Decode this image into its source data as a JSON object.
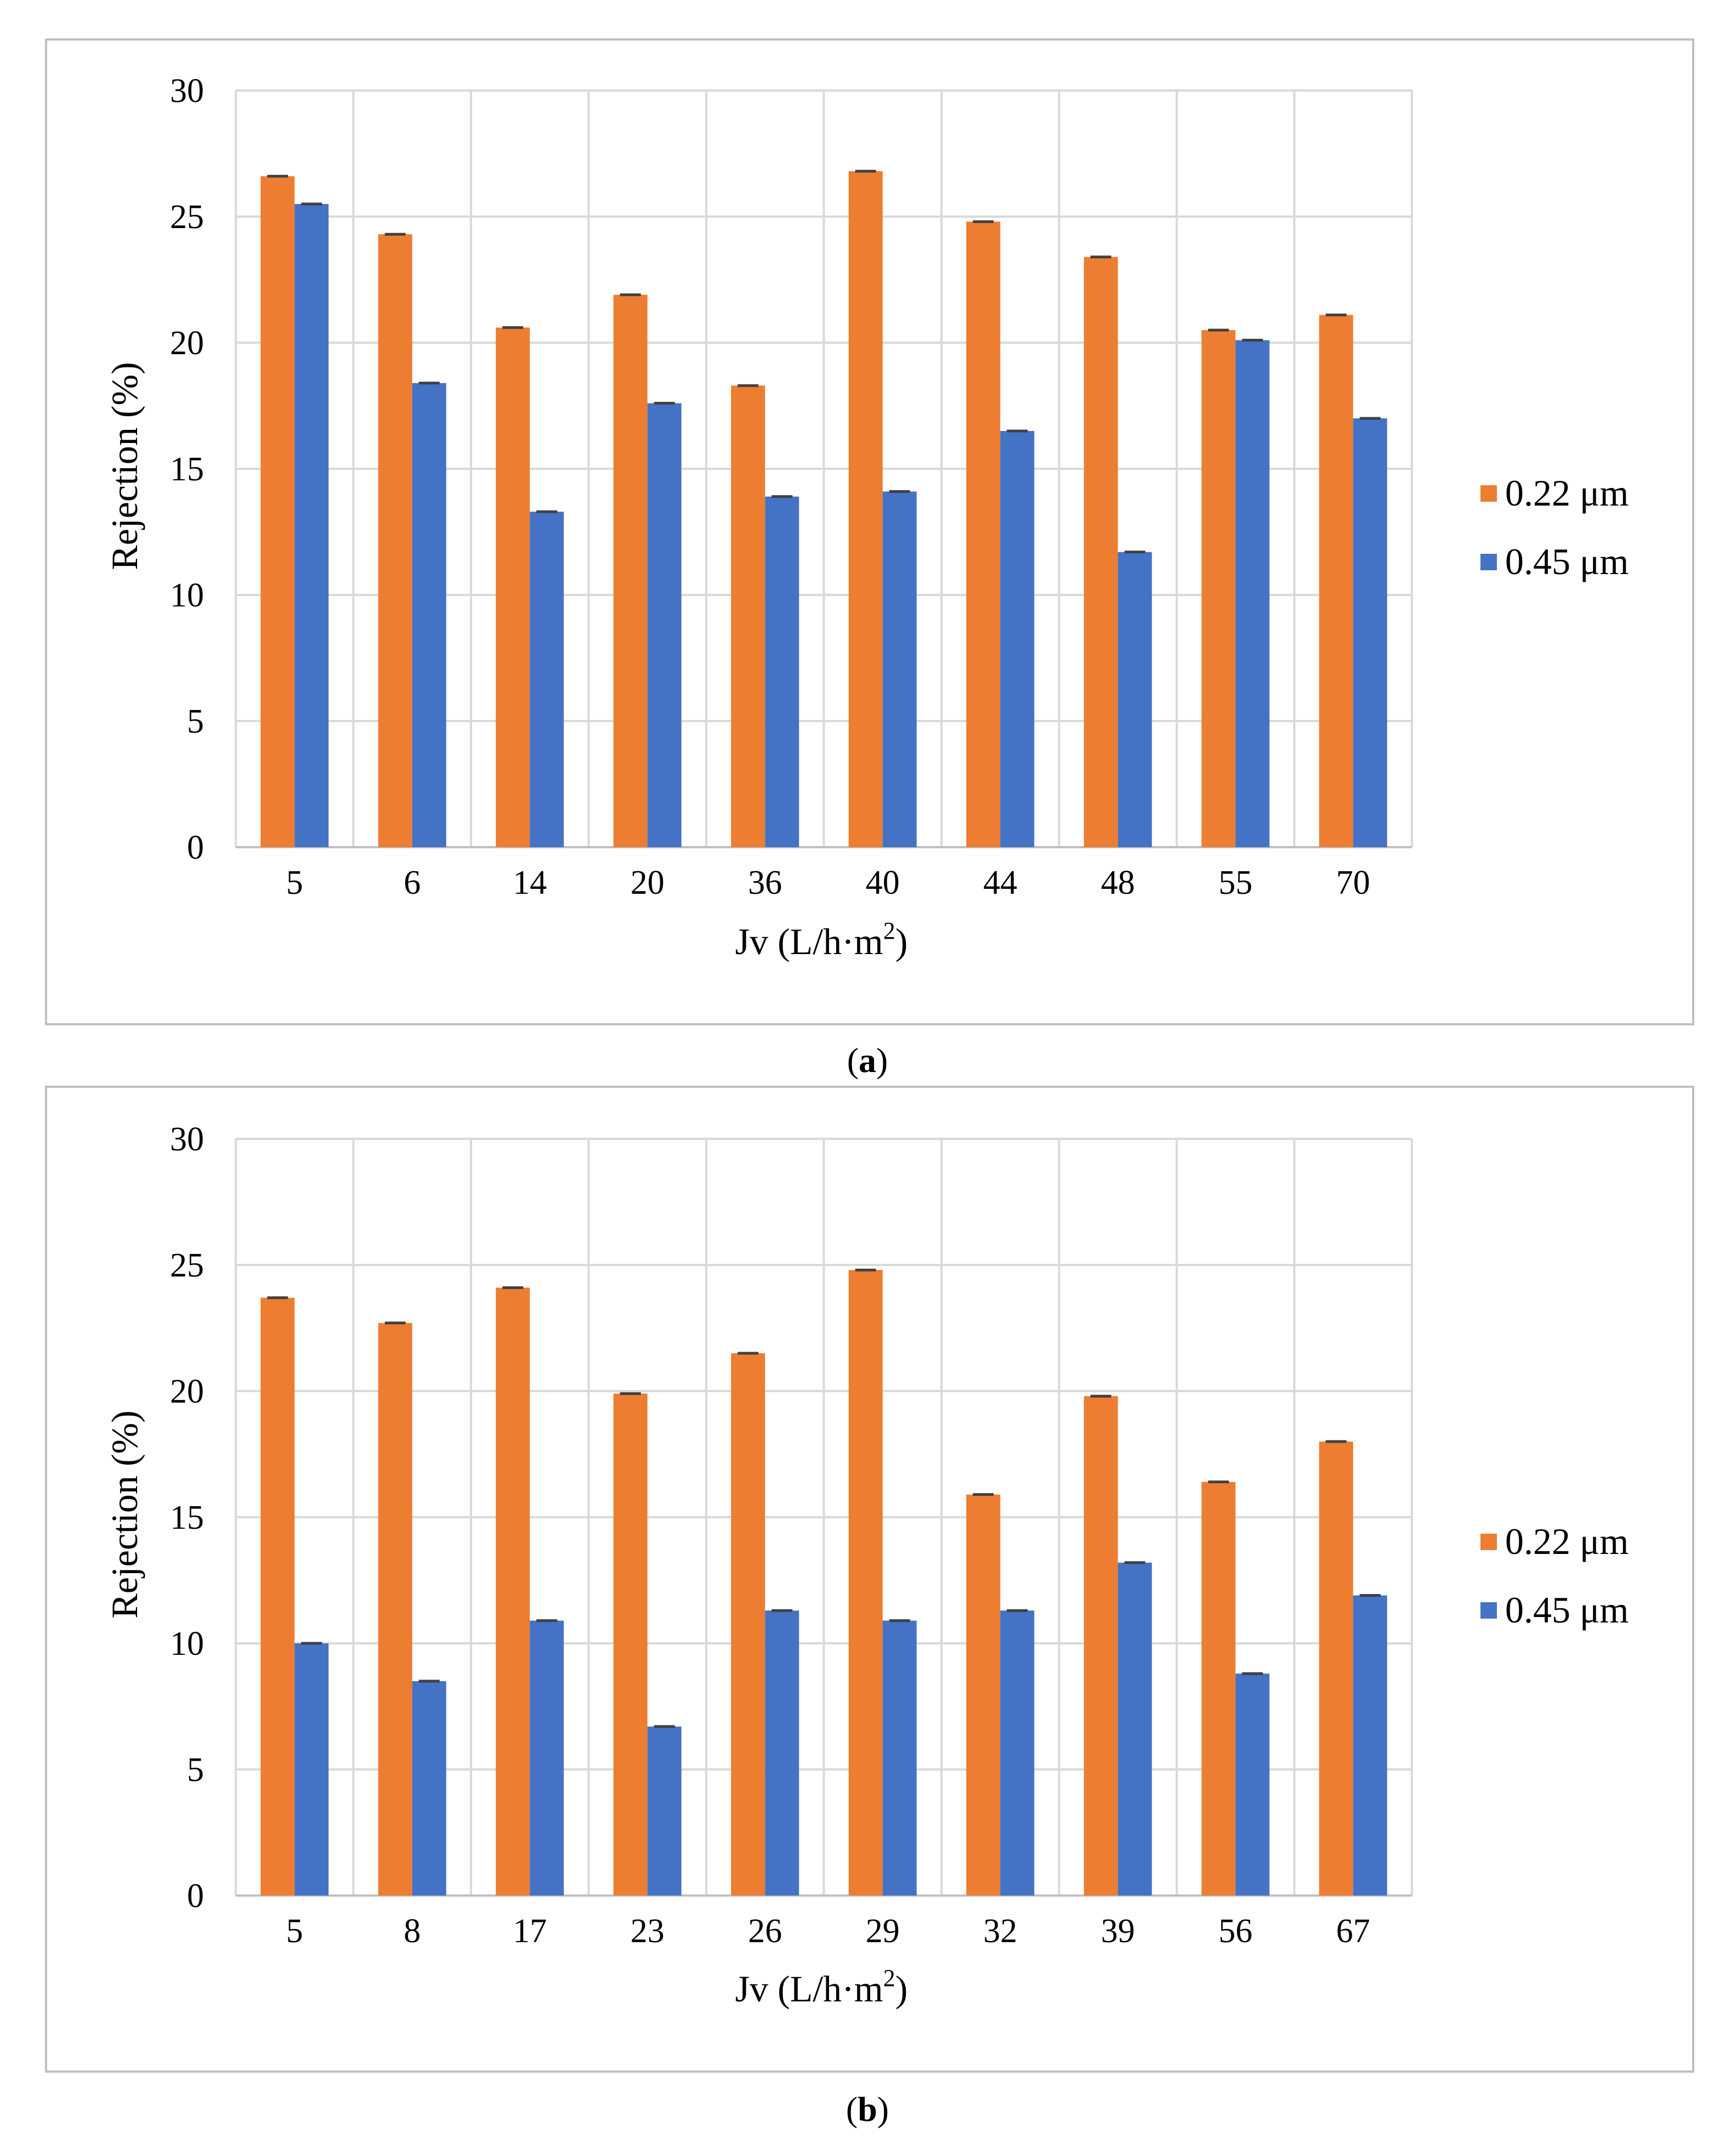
{
  "chart_data": [
    {
      "panel_label": "a",
      "type": "bar",
      "categories": [
        "5",
        "6",
        "14",
        "20",
        "36",
        "40",
        "44",
        "48",
        "55",
        "70"
      ],
      "series": [
        {
          "name": "0.22 μm",
          "color": "#ED7D31",
          "values": [
            26.6,
            24.3,
            20.6,
            21.9,
            18.3,
            26.8,
            24.8,
            23.4,
            20.5,
            21.1
          ]
        },
        {
          "name": "0.45 μm",
          "color": "#4472C4",
          "values": [
            25.5,
            18.4,
            13.3,
            17.6,
            13.9,
            14.1,
            16.5,
            11.7,
            20.1,
            17.0
          ]
        }
      ],
      "title": "",
      "xlabel": "Jv (L/h·m²)",
      "ylabel": "Rejection (%)",
      "ylim": [
        0,
        30
      ],
      "yticks": [
        "0",
        "5",
        "10",
        "15",
        "20",
        "25",
        "30"
      ],
      "grid": true,
      "legend": "right",
      "error_bars": true
    },
    {
      "panel_label": "b",
      "type": "bar",
      "categories": [
        "5",
        "8",
        "17",
        "23",
        "26",
        "29",
        "32",
        "39",
        "56",
        "67"
      ],
      "series": [
        {
          "name": "0.22 μm",
          "color": "#ED7D31",
          "values": [
            23.7,
            22.7,
            24.1,
            19.9,
            21.5,
            24.8,
            15.9,
            19.8,
            16.4,
            18.0
          ]
        },
        {
          "name": "0.45 μm",
          "color": "#4472C4",
          "values": [
            10.0,
            8.5,
            10.9,
            6.7,
            11.3,
            10.9,
            11.3,
            13.2,
            8.8,
            11.9
          ]
        }
      ],
      "title": "",
      "xlabel": "Jv (L/h·m²)",
      "ylabel": "Rejection (%)",
      "ylim": [
        0,
        30
      ],
      "yticks": [
        "0",
        "5",
        "10",
        "15",
        "20",
        "25",
        "30"
      ],
      "grid": true,
      "legend": "right",
      "error_bars": true
    }
  ],
  "captions": {
    "a": "(a)",
    "b": "(b)"
  }
}
